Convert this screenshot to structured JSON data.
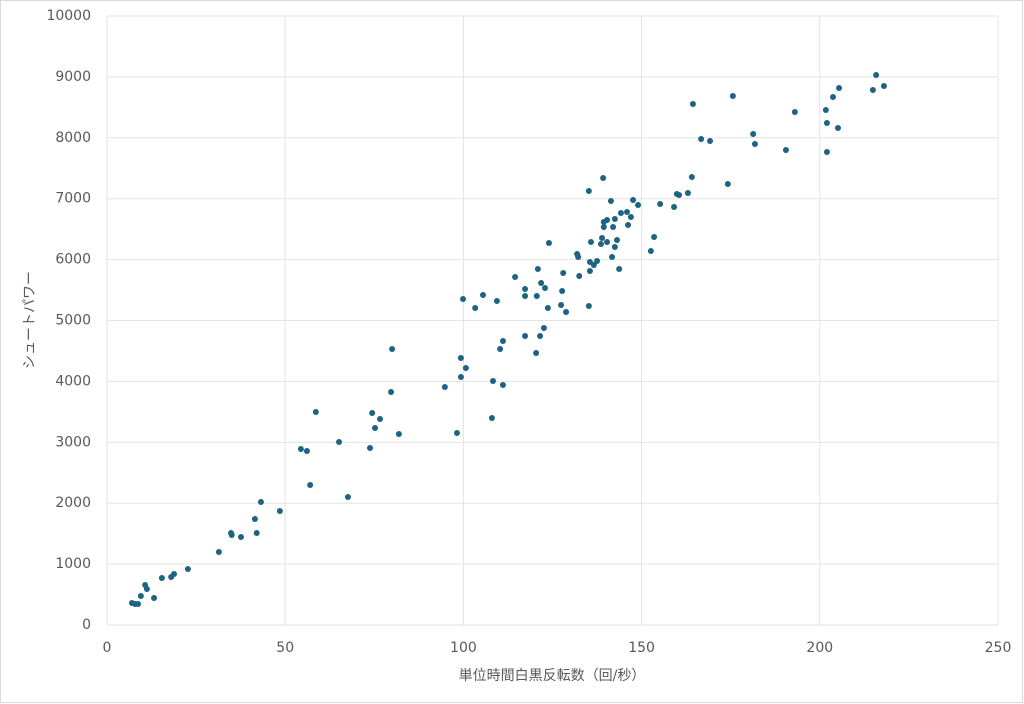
{
  "chart_data": {
    "type": "scatter",
    "x_label": "単位時間白黒反転数（回/秒）",
    "y_label": "シュートパワー",
    "color": "#1d6383",
    "grid": true,
    "xlim": [
      0,
      250
    ],
    "xticks": [
      0,
      50,
      100,
      150,
      200,
      250
    ],
    "ylim": [
      0,
      10000
    ],
    "yticks": [
      0,
      1000,
      2000,
      3000,
      4000,
      5000,
      6000,
      7000,
      8000,
      9000,
      10000
    ],
    "x": [
      7,
      7.9,
      8.7,
      9.5,
      10.7,
      11.2,
      13.2,
      15.4,
      18,
      18.8,
      22.7,
      31.4,
      34.8,
      35,
      37.6,
      41.5,
      42,
      43.2,
      48.5,
      54.4,
      56.1,
      57,
      58.6,
      65.1,
      67.6,
      73.8,
      74.4,
      75.2,
      76.6,
      79.7,
      80,
      81.9,
      94.8,
      98.2,
      99.3,
      99.3,
      100.7,
      99.9,
      103.3,
      105.5,
      108,
      108.3,
      109.4,
      110.3,
      111.1,
      111.1,
      114.5,
      117.3,
      117.3,
      117.3,
      120.4,
      120.6,
      120.9,
      121.5,
      121.8,
      122.6,
      122.9,
      123.7,
      124,
      127.4,
      127.7,
      128,
      128.8,
      131.9,
      132.2,
      132.5,
      135.2,
      135.2,
      135.5,
      135.5,
      135.8,
      136.6,
      137.5,
      138.6,
      138.9,
      139.2,
      139.4,
      139.4,
      140.3,
      140.3,
      141.4,
      141.7,
      142,
      142.5,
      142.5,
      143.1,
      143.7,
      144.2,
      145.9,
      146.2,
      147,
      147.6,
      149,
      152.6,
      153.5,
      155.2,
      159.1,
      159.9,
      160.5,
      163,
      164.1,
      164.4,
      166.7,
      169.2,
      174.2,
      175.6,
      181.3,
      181.8,
      190.5,
      193,
      201.7,
      202,
      202,
      203.7,
      205.1,
      205.4,
      214.9,
      215.8,
      218
    ],
    "values": [
      361,
      345,
      345,
      476,
      657,
      591,
      443,
      772,
      788,
      837,
      920,
      1199,
      1511,
      1478,
      1445,
      1741,
      1511,
      2020,
      1872,
      2890,
      2857,
      2299,
      3498,
      3005,
      2102,
      2906,
      3481,
      3235,
      3383,
      3826,
      4532,
      3136,
      3908,
      3153,
      4384,
      4072,
      4220,
      5353,
      5205,
      5419,
      3399,
      4007,
      5320,
      4532,
      4663,
      3941,
      5714,
      5517,
      5402,
      4745,
      4466,
      5402,
      5846,
      4745,
      5616,
      4877,
      5534,
      5205,
      6273,
      5255,
      5484,
      5780,
      5140,
      6092,
      6043,
      5731,
      7127,
      5238,
      5813,
      5961,
      6289,
      5911,
      5977,
      6256,
      6355,
      7340,
      6535,
      6617,
      6650,
      6289,
      6962,
      6043,
      6535,
      6667,
      6207,
      6322,
      5846,
      6765,
      6782,
      6568,
      6700,
      6979,
      6897,
      6141,
      6371,
      6913,
      6864,
      7077,
      7061,
      7094,
      7356,
      8555,
      7980,
      7947,
      7241,
      8686,
      8062,
      7898,
      7800,
      8424,
      8456,
      8243,
      7767,
      8670,
      8161,
      8818,
      8785,
      9031,
      8851
    ]
  }
}
